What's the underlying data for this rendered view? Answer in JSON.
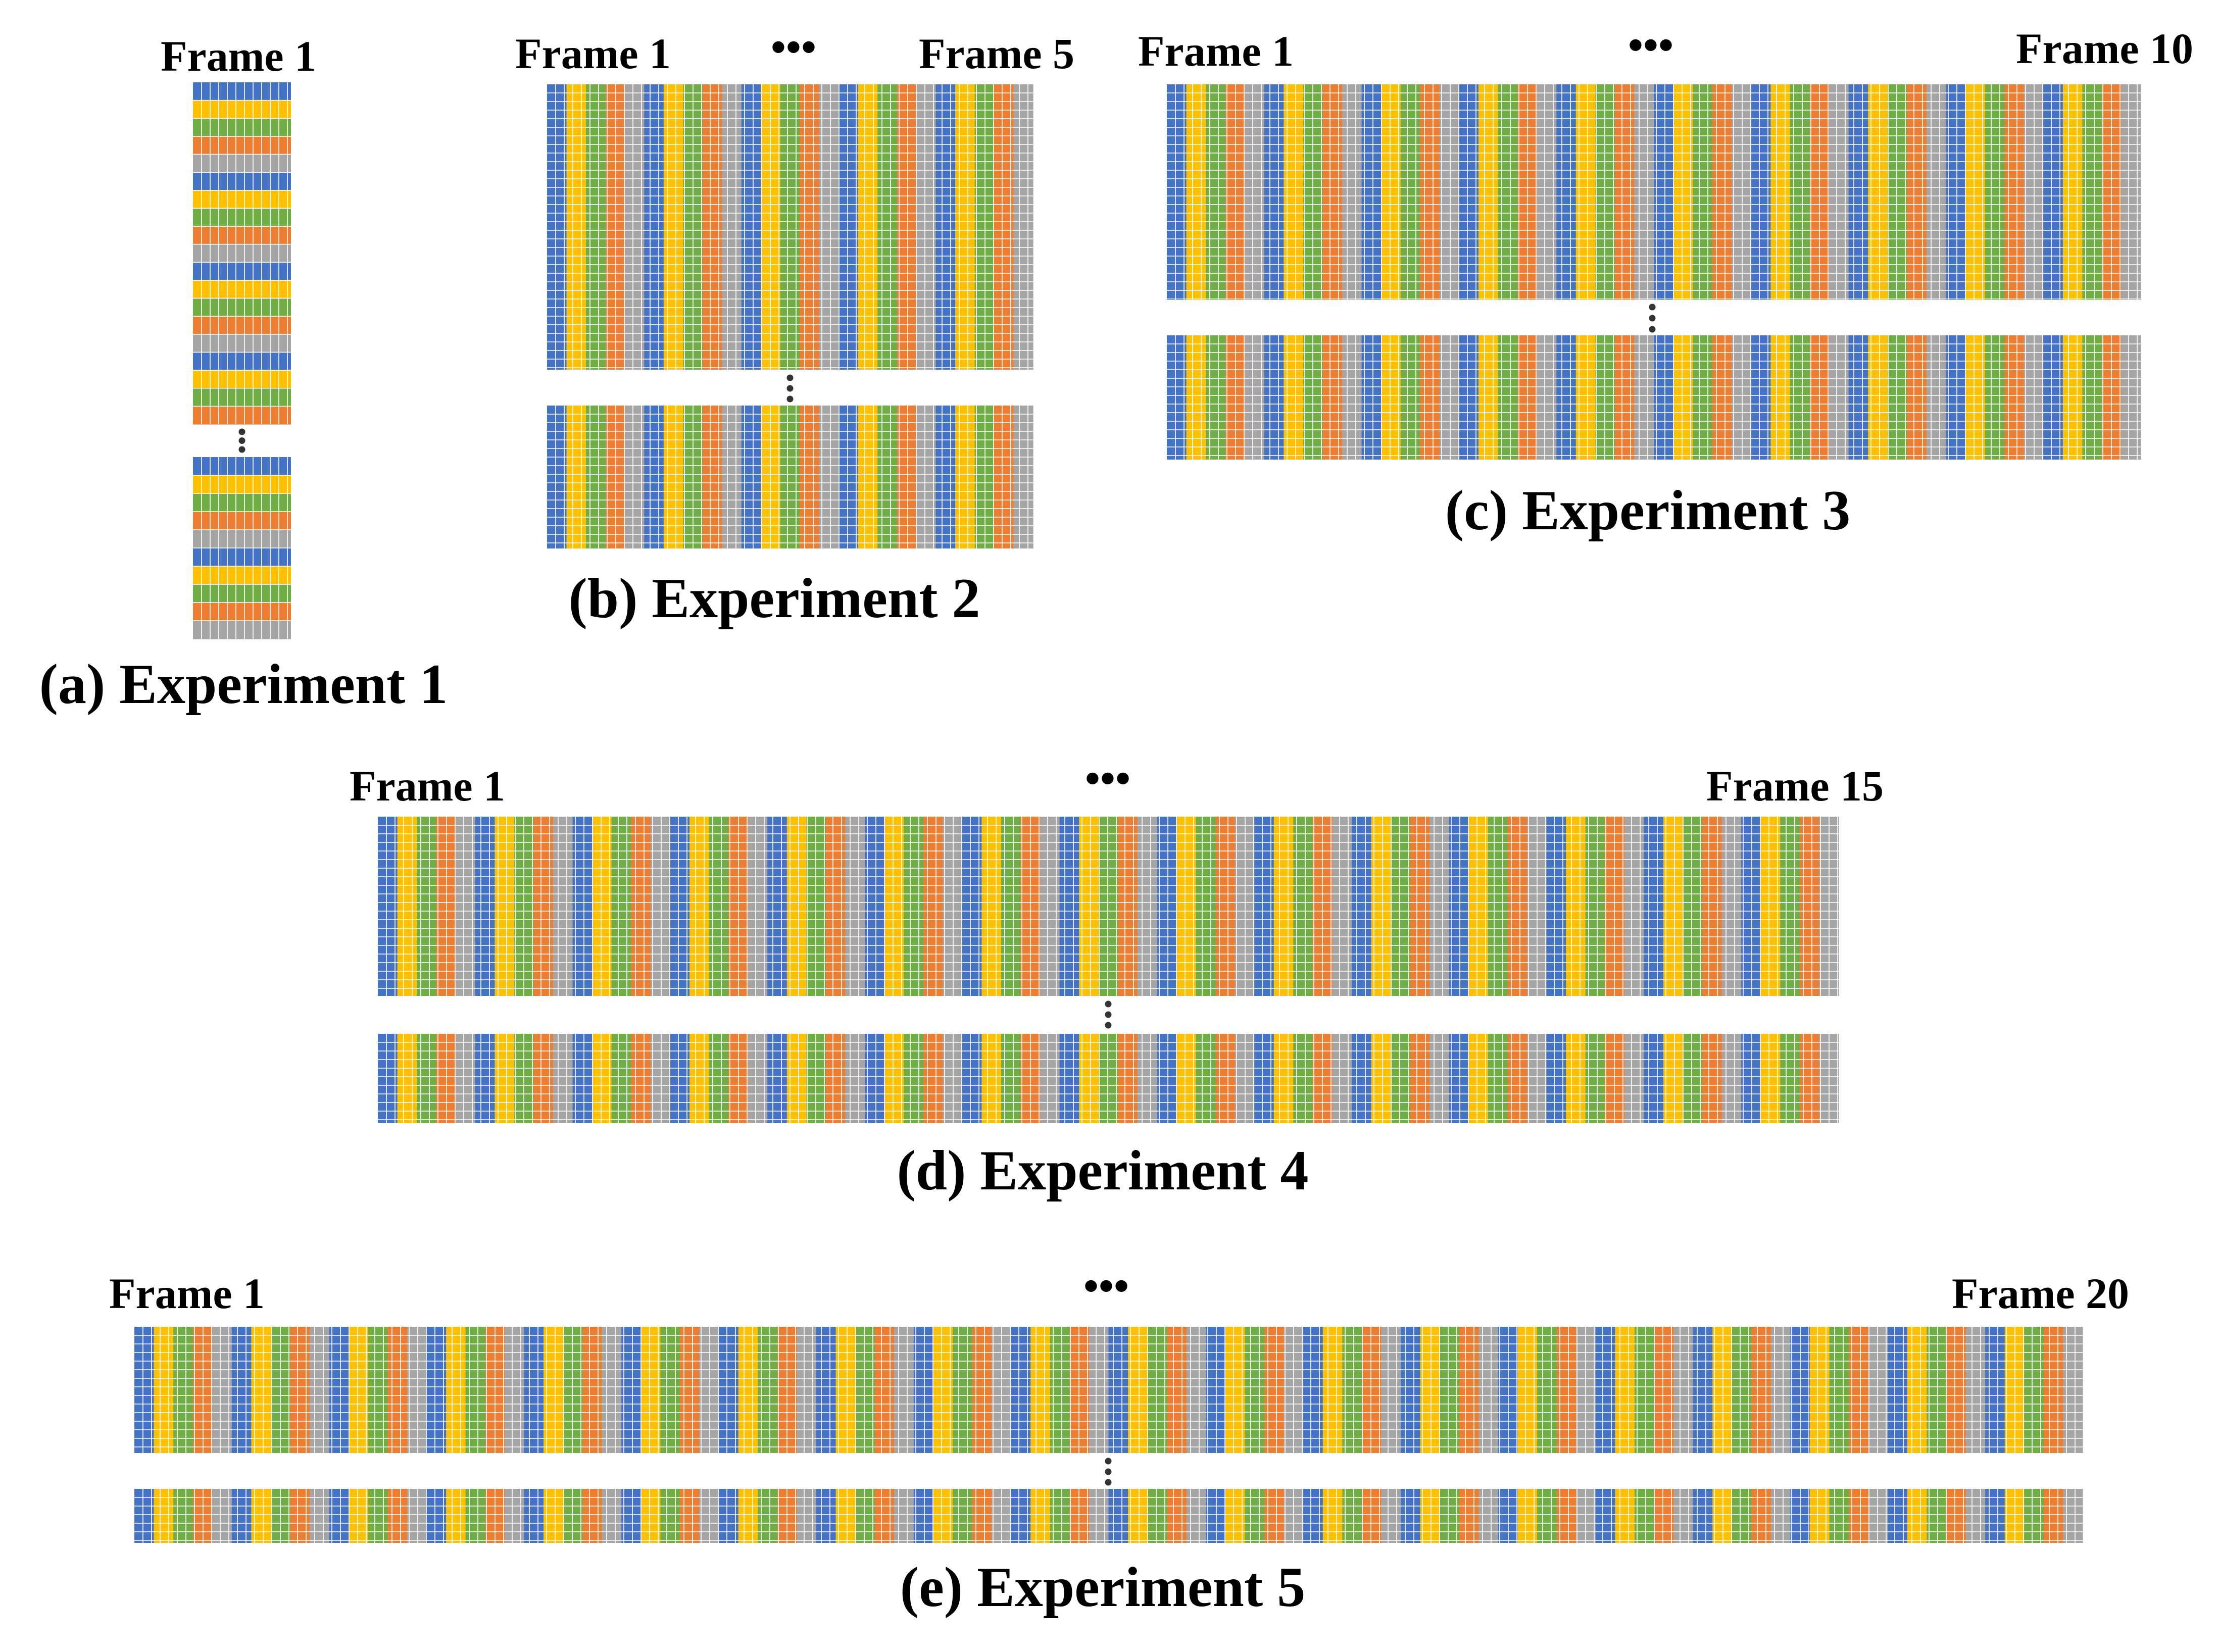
{
  "colors": [
    "#4472C4",
    "#FFC000",
    "#70AD47",
    "#ED7D31",
    "#A5A5A5"
  ],
  "grid_line_color": "#ffffff",
  "ellipsis_glyph": "•••",
  "panels": [
    {
      "id": "a",
      "caption": "(a) Experiment 1",
      "start_label": "Frame 1",
      "end_label": "",
      "frames": 1
    },
    {
      "id": "b",
      "caption": "(b) Experiment 2",
      "start_label": "Frame 1",
      "end_label": "Frame 5",
      "frames": 5
    },
    {
      "id": "c",
      "caption": "(c) Experiment 3",
      "start_label": "Frame 1",
      "end_label": "Frame 10",
      "frames": 10
    },
    {
      "id": "d",
      "caption": "(d) Experiment 4",
      "start_label": "Frame 1",
      "end_label": "Frame 15",
      "frames": 15
    },
    {
      "id": "e",
      "caption": "(e) Experiment 5",
      "start_label": "Frame 1",
      "end_label": "Frame 20",
      "frames": 20
    }
  ]
}
